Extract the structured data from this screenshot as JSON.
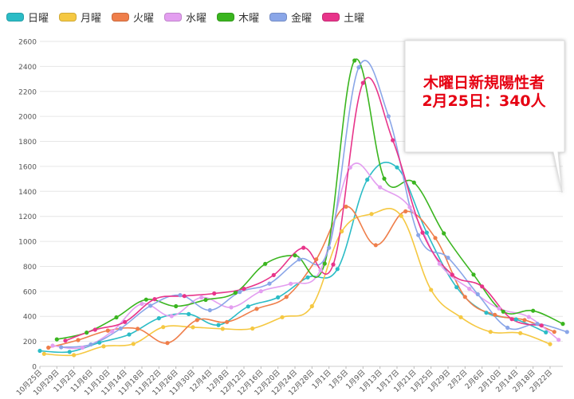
{
  "chart_data": {
    "type": "line",
    "title": "",
    "xlabel": "",
    "ylabel": "",
    "ylim": [
      0,
      2600
    ],
    "yticks": [
      0,
      200,
      400,
      600,
      800,
      1000,
      1200,
      1400,
      1600,
      1800,
      2000,
      2200,
      2400,
      2600
    ],
    "grid": true,
    "legend": "top-left",
    "x_tick_labels": [
      "10月25日",
      "10月29日",
      "11月2日",
      "11月6日",
      "11月10日",
      "11月14日",
      "11月18日",
      "11月22日",
      "11月26日",
      "11月30日",
      "12月4日",
      "12月8日",
      "12月12日",
      "12月16日",
      "12月20日",
      "12月24日",
      "12月28日",
      "1月1日",
      "1月5日",
      "1月9日",
      "1月13日",
      "1月17日",
      "1月21日",
      "1月25日",
      "1月29日",
      "2月2日",
      "2月6日",
      "2月10日",
      "2月14日",
      "2月18日",
      "2月22日"
    ],
    "series": [
      {
        "name": "日曜",
        "color": "#2bbcc6",
        "start_day": 0,
        "values": [
          124,
          116,
          190,
          255,
          385,
          418,
          331,
          479,
          552,
          712,
          779,
          1494,
          1592,
          1070,
          633,
          429,
          376,
          272
        ]
      },
      {
        "name": "月曜",
        "color": "#f5c842",
        "start_day": 1,
        "values": [
          100,
          90,
          160,
          180,
          314,
          313,
          300,
          303,
          393,
          481,
          1080,
          1219,
          1204,
          612,
          393,
          276,
          266,
          178
        ]
      },
      {
        "name": "火曜",
        "color": "#ef7e4a",
        "start_day": 2,
        "values": [
          150,
          210,
          286,
          300,
          187,
          371,
          355,
          460,
          556,
          856,
          1278,
          970,
          1240,
          1027,
          556,
          412,
          371,
          276
        ]
      },
      {
        "name": "水曜",
        "color": "#e39ef0",
        "start_day": 3,
        "values": [
          166,
          150,
          280,
          500,
          402,
          551,
          472,
          601,
          661,
          770,
          1591,
          1433,
          1274,
          821,
          621,
          463,
          395,
          212
        ]
      },
      {
        "name": "木曜",
        "color": "#3ab51f",
        "start_day": 4,
        "values": [
          216,
          270,
          392,
          534,
          481,
          532,
          589,
          820,
          888,
          822,
          2447,
          1502,
          1471,
          1064,
          734,
          438,
          445,
          340
        ]
      },
      {
        "name": "金曜",
        "color": "#8aa6e8",
        "start_day": 5,
        "values": [
          153,
          175,
          303,
          485,
          570,
          449,
          595,
          662,
          855,
          949,
          2392,
          2001,
          1050,
          869,
          577,
          309,
          340,
          275
        ]
      },
      {
        "name": "土曜",
        "color": "#e8348a",
        "start_day": 6,
        "values": [
          206,
          293,
          355,
          538,
          563,
          583,
          621,
          730,
          949,
          815,
          2268,
          1809,
          1070,
          733,
          639,
          378,
          327
        ]
      }
    ]
  },
  "callout": {
    "line1": "木曜日新規陽性者",
    "line2": "2月25日：340人"
  }
}
